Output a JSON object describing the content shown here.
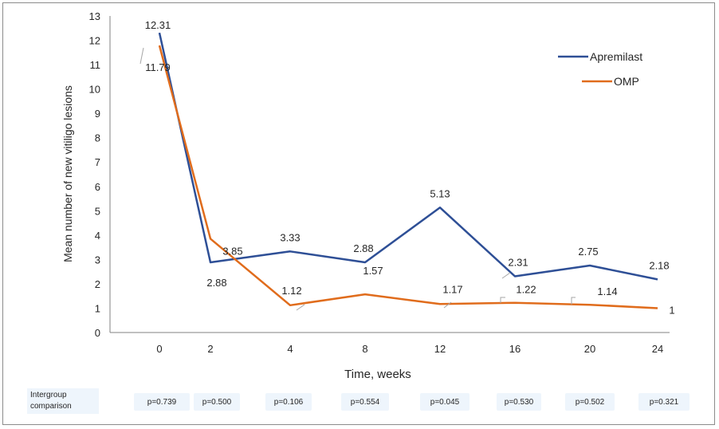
{
  "chart_data": {
    "type": "line",
    "categories": [
      "0",
      "2",
      "4",
      "8",
      "12",
      "16",
      "20",
      "24"
    ],
    "series": [
      {
        "name": "Apremilast",
        "color": "#2e4f96",
        "values": [
          12.31,
          2.88,
          3.33,
          2.88,
          5.13,
          2.31,
          2.75,
          2.18
        ],
        "labels": [
          "12.31",
          "2.88",
          "3.33",
          "2.88",
          "5.13",
          "2.31",
          "2.75",
          "2.18"
        ]
      },
      {
        "name": "OMP",
        "color": "#e06c1c",
        "values": [
          11.79,
          3.85,
          1.12,
          1.57,
          1.17,
          1.22,
          1.14,
          1
        ],
        "labels": [
          "11.79",
          "3.85",
          "1.12",
          "1.57",
          "1.17",
          "1.22",
          "1.14",
          "1"
        ]
      }
    ],
    "title": "",
    "xlabel": "Time, weeks",
    "ylabel": "Mean number of new vitiligo lesions",
    "ylim": [
      0,
      13
    ],
    "yticks": [
      "0",
      "1",
      "2",
      "3",
      "4",
      "5",
      "6",
      "7",
      "8",
      "9",
      "10",
      "11",
      "12",
      "13"
    ],
    "grid": false,
    "legend": "top-right"
  },
  "comparison": {
    "label": "Intergroup comparison",
    "pvalues": [
      "p=0.739",
      "p=0.500",
      "p=0.106",
      "p=0.554",
      "p=0.045",
      "p=0.530",
      "p=0.502",
      "p=0.321"
    ]
  }
}
